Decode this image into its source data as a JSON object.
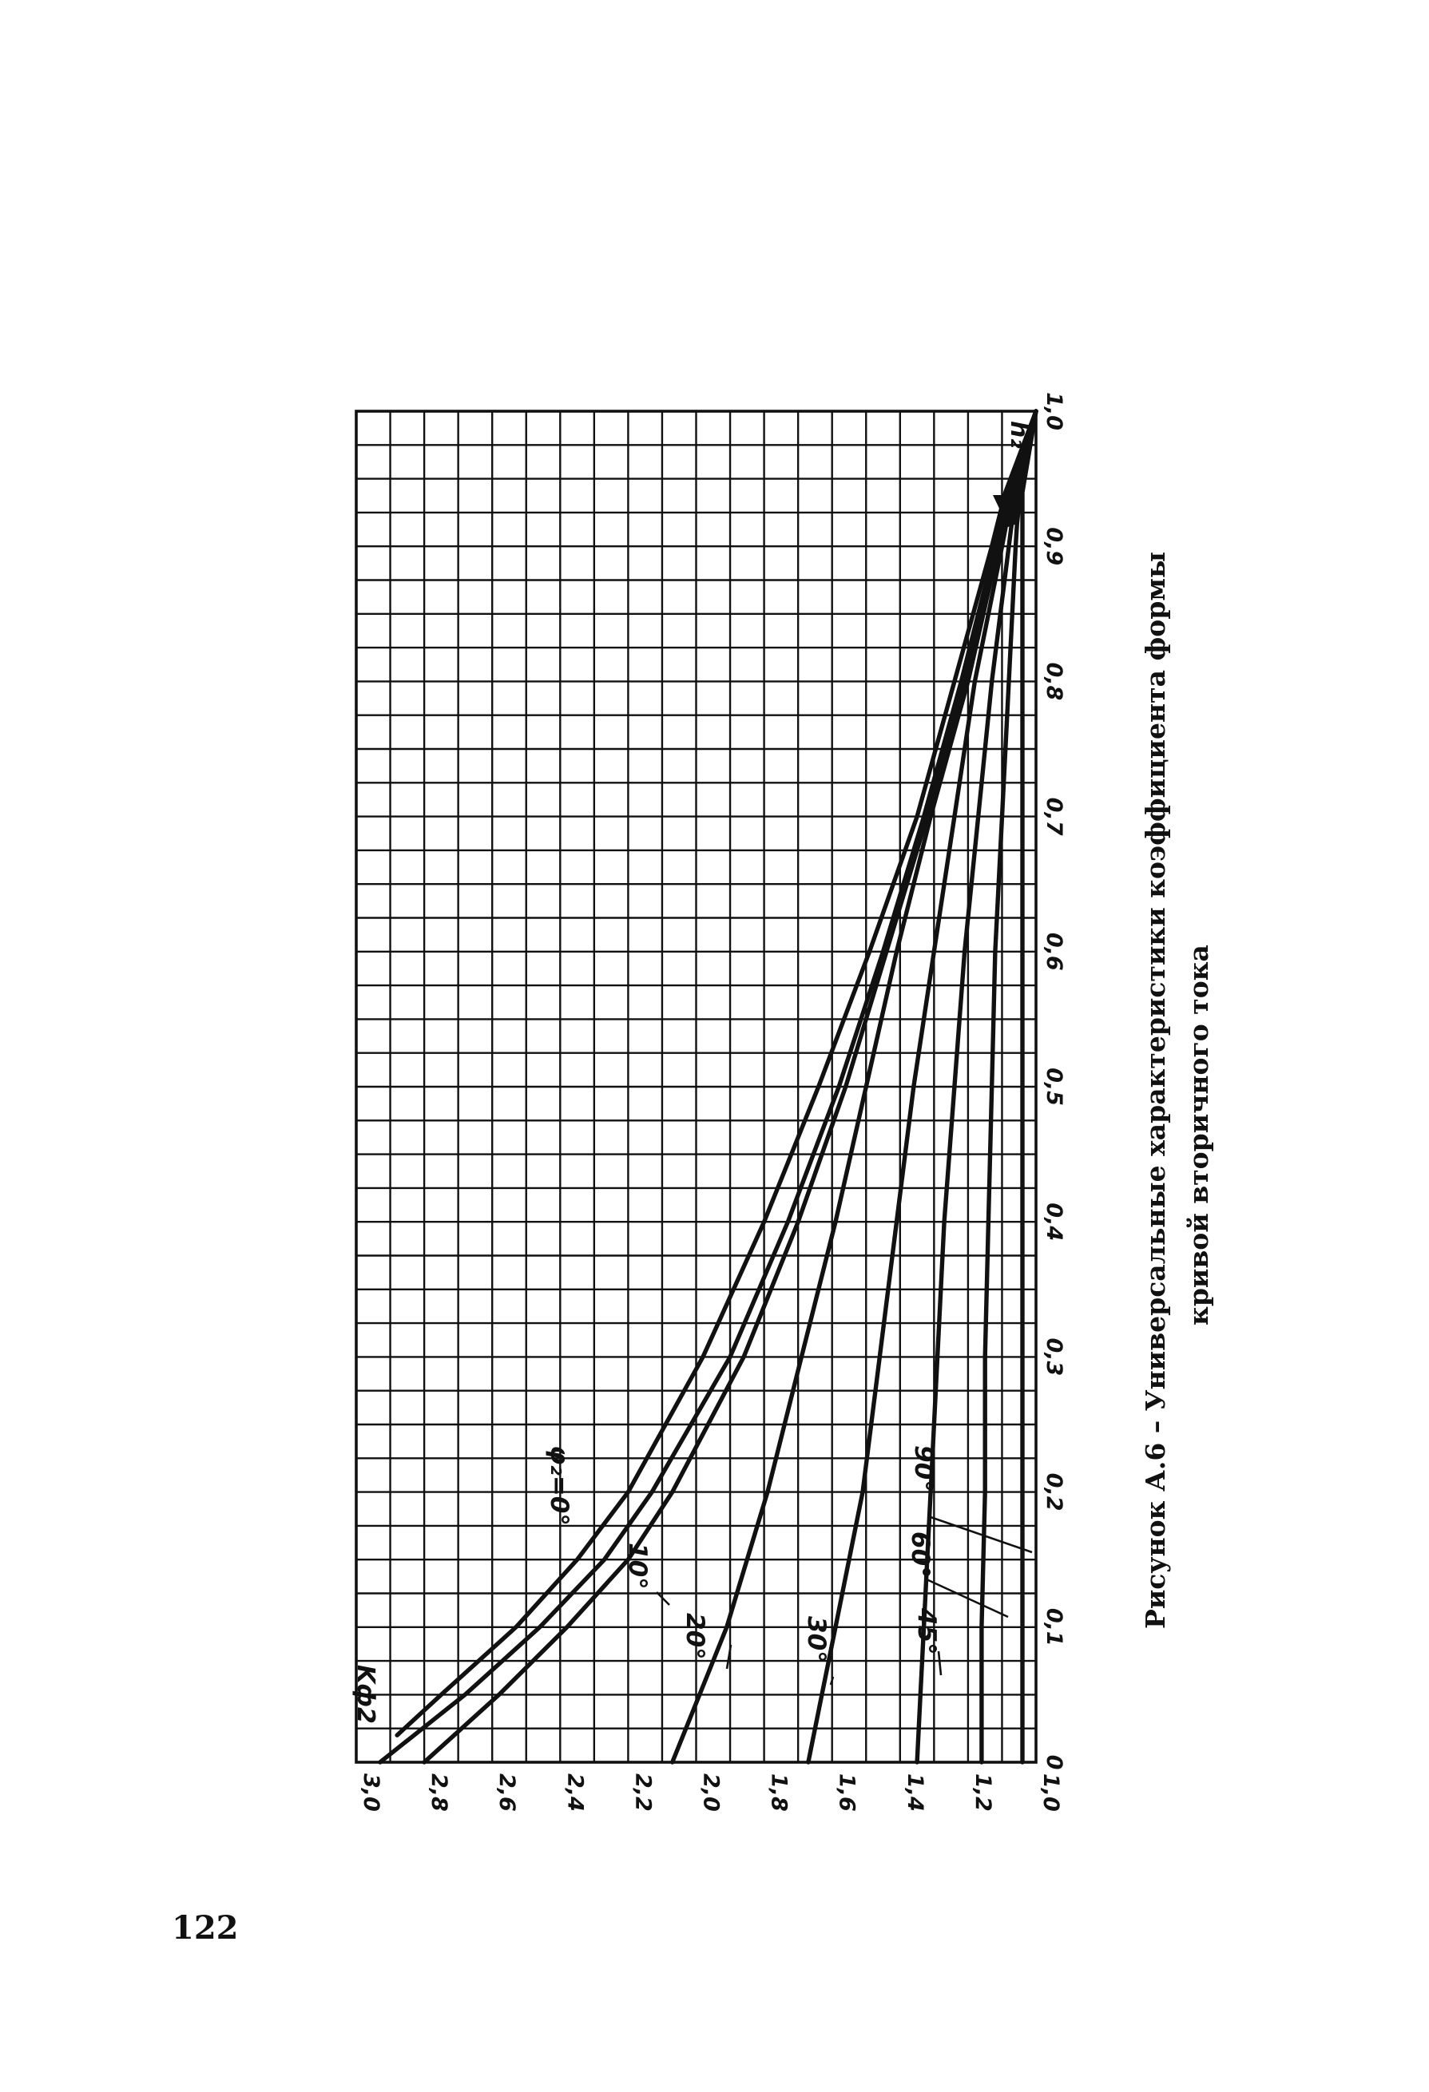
{
  "page_number": "122",
  "caption": {
    "line1": "Рисунок А.6 – Универсальные характеристики коэффициента формы",
    "line2": "кривой вторичного тока"
  },
  "chart_data": {
    "type": "line",
    "title": "",
    "xlabel": "h₂",
    "ylabel": "Kф2",
    "xlim": [
      0,
      1.0
    ],
    "ylim": [
      1.0,
      3.0
    ],
    "grid": true,
    "x_ticks": [
      "0",
      "0,1",
      "0,2",
      "0,3",
      "0,4",
      "0,5",
      "0,6",
      "0,7",
      "0,8",
      "0,9",
      "1,0"
    ],
    "y_ticks": [
      "1,0",
      "1,2",
      "1,4",
      "1,6",
      "1,8",
      "2,0",
      "2,2",
      "2,4",
      "2,6",
      "2,8",
      "3,0"
    ],
    "series": [
      {
        "name": "φ₂=0°",
        "x": [
          0.02,
          0.05,
          0.1,
          0.15,
          0.2,
          0.3,
          0.4,
          0.5,
          0.6,
          0.7,
          0.8,
          0.9,
          0.94,
          1.0
        ],
        "y": [
          2.88,
          2.75,
          2.53,
          2.35,
          2.2,
          1.98,
          1.8,
          1.64,
          1.49,
          1.35,
          1.24,
          1.13,
          1.09,
          1.0
        ]
      },
      {
        "name": "10°",
        "x": [
          0.0,
          0.05,
          0.1,
          0.15,
          0.2,
          0.3,
          0.4,
          0.5,
          0.6,
          0.7,
          0.8,
          0.9,
          0.94,
          1.0
        ],
        "y": [
          2.93,
          2.68,
          2.46,
          2.27,
          2.13,
          1.9,
          1.73,
          1.58,
          1.45,
          1.33,
          1.22,
          1.12,
          1.08,
          1.0
        ]
      },
      {
        "name": "",
        "x": [
          0.0,
          0.05,
          0.1,
          0.15,
          0.2,
          0.3,
          0.4,
          0.5,
          0.6,
          0.7,
          0.8,
          0.9,
          0.94,
          1.0
        ],
        "y": [
          2.8,
          2.58,
          2.38,
          2.2,
          2.07,
          1.86,
          1.7,
          1.56,
          1.44,
          1.32,
          1.21,
          1.11,
          1.08,
          1.0
        ]
      },
      {
        "name": "20°",
        "x": [
          0.0,
          0.05,
          0.1,
          0.15,
          0.2,
          0.3,
          0.4,
          0.5,
          0.6,
          0.7,
          0.8,
          0.9,
          0.94,
          1.0
        ],
        "y": [
          2.07,
          1.99,
          1.91,
          1.85,
          1.79,
          1.69,
          1.59,
          1.5,
          1.41,
          1.31,
          1.2,
          1.11,
          1.08,
          1.0
        ]
      },
      {
        "name": "30°",
        "x": [
          0.0,
          0.05,
          0.1,
          0.15,
          0.2,
          0.3,
          0.4,
          0.5,
          0.6,
          0.7,
          0.8,
          0.9,
          0.94,
          1.0
        ],
        "y": [
          1.67,
          1.63,
          1.59,
          1.55,
          1.51,
          1.46,
          1.41,
          1.36,
          1.3,
          1.24,
          1.18,
          1.1,
          1.07,
          1.0
        ]
      },
      {
        "name": "45°",
        "x": [
          0.0,
          0.05,
          0.1,
          0.15,
          0.2,
          0.3,
          0.4,
          0.5,
          0.6,
          0.7,
          0.8,
          0.9,
          0.94,
          1.0
        ],
        "y": [
          1.35,
          1.34,
          1.33,
          1.32,
          1.31,
          1.29,
          1.27,
          1.24,
          1.21,
          1.17,
          1.13,
          1.08,
          1.06,
          1.0
        ]
      },
      {
        "name": "60°",
        "x": [
          0.0,
          0.1,
          0.2,
          0.3,
          0.4,
          0.5,
          0.6,
          0.7,
          0.8,
          0.9,
          0.94,
          1.0
        ],
        "y": [
          1.16,
          1.16,
          1.15,
          1.15,
          1.14,
          1.13,
          1.12,
          1.1,
          1.08,
          1.06,
          1.05,
          1.0
        ]
      },
      {
        "name": "90°",
        "x": [
          0.0,
          0.2,
          0.4,
          0.6,
          0.8,
          0.9,
          0.94,
          1.0
        ],
        "y": [
          1.04,
          1.04,
          1.04,
          1.04,
          1.04,
          1.04,
          1.04,
          1.0
        ]
      }
    ]
  }
}
